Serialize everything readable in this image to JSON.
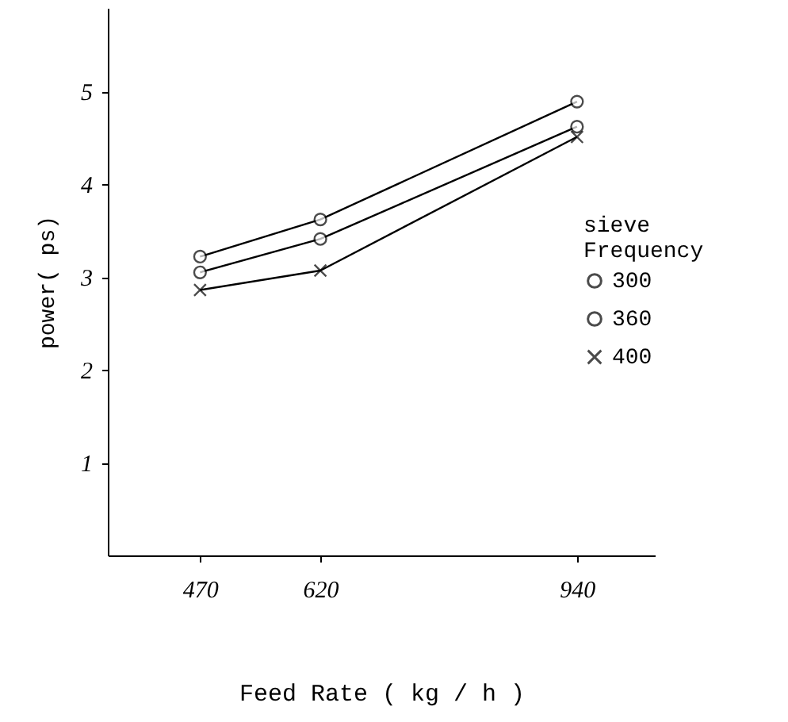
{
  "chart_data": {
    "type": "line",
    "xlabel": "Feed   Rate ( kg / h )",
    "ylabel": "power( ps)",
    "legend_title": "sieve Frequency",
    "x": [
      470,
      620,
      940
    ],
    "xlim": [
      355,
      1037
    ],
    "xticks": [
      470,
      620,
      940
    ],
    "ylim": [
      0,
      5.9
    ],
    "yticks": [
      1,
      2,
      3,
      4,
      5
    ],
    "series": [
      {
        "name": "300",
        "color": "#000000",
        "marker": "circle",
        "values": [
          3.05,
          3.41,
          4.62
        ]
      },
      {
        "name": "360",
        "color": "#000000",
        "marker": "circle",
        "values": [
          3.22,
          3.62,
          4.89
        ]
      },
      {
        "name": "400",
        "color": "#000000",
        "marker": "cross",
        "values": [
          2.86,
          3.07,
          4.51
        ]
      }
    ],
    "legend": "right",
    "grid": false
  }
}
